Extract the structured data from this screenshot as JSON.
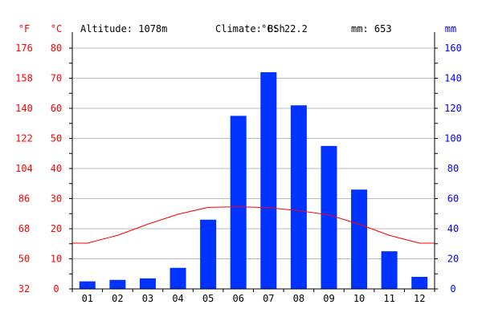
{
  "header": {
    "altitude": "Altitude: 1078m",
    "climate": "Climate: BSh",
    "temp": "°C: 22.2",
    "precip": "mm: 653"
  },
  "colors": {
    "fahrenheit": "#ff0000",
    "celsius": "#ff0000",
    "precip_axis": "#0000ff",
    "bars": "#0033ff",
    "temp_line": "#ff0000",
    "grid": "#bbbbbb",
    "axis": "#000000"
  },
  "chart_data": {
    "type": "bar",
    "categories": [
      "01",
      "02",
      "03",
      "04",
      "05",
      "06",
      "07",
      "08",
      "09",
      "10",
      "11",
      "12"
    ],
    "series": [
      {
        "type": "bar",
        "axis": "right",
        "values": [
          5,
          6,
          7,
          14,
          46,
          115,
          144,
          122,
          95,
          66,
          25,
          8
        ]
      },
      {
        "type": "line",
        "axis": "left",
        "values": [
          15.2,
          17.8,
          21.5,
          24.8,
          27.1,
          27.3,
          27.0,
          26.0,
          24.6,
          21.5,
          17.8,
          15.2
        ]
      }
    ],
    "left_axis": {
      "unit": "°C",
      "range": [
        0,
        80
      ],
      "ticks": [
        "0",
        "10",
        "20",
        "30",
        "40",
        "50",
        "60",
        "70",
        "80"
      ]
    },
    "fahrenheit_axis": {
      "unit": "°F",
      "ticks": [
        "32",
        "50",
        "68",
        "86",
        "104",
        "122",
        "140",
        "158",
        "176"
      ]
    },
    "right_axis": {
      "unit": "mm",
      "range": [
        0,
        160
      ],
      "ticks": [
        "0",
        "20",
        "40",
        "60",
        "80",
        "100",
        "120",
        "140",
        "160"
      ]
    },
    "grid": true
  }
}
